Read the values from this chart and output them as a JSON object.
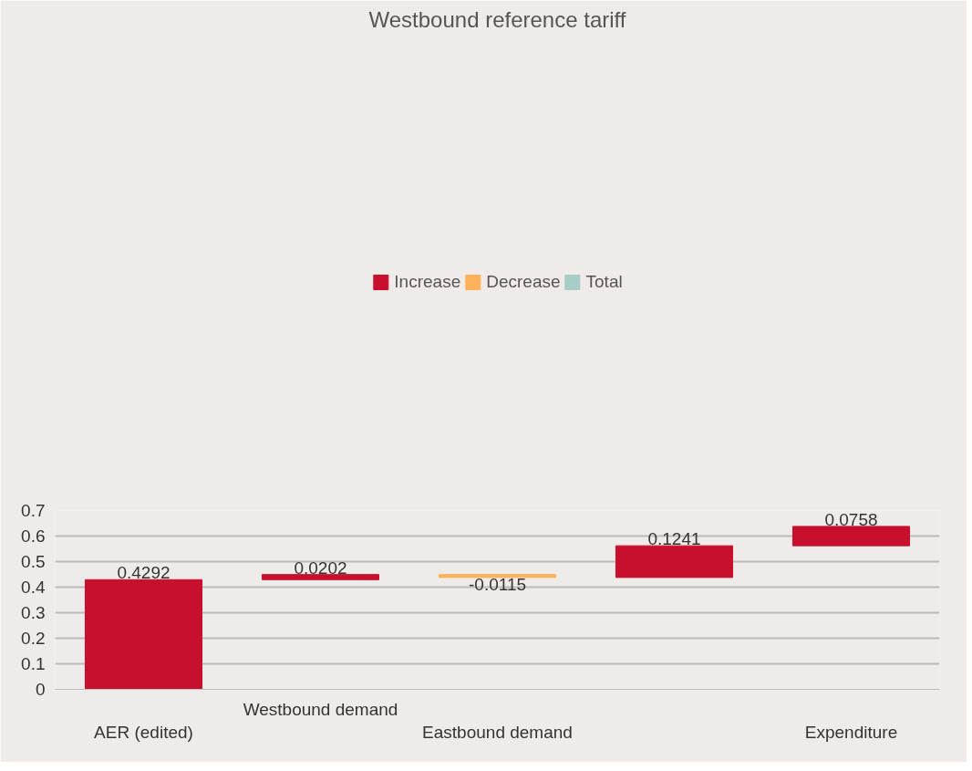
{
  "chart_data": {
    "type": "bar",
    "title": "Westbound reference tariff",
    "categories": [
      "AER (edited)",
      "Westbound demand",
      "Eastbound demand",
      null,
      "Expenditure"
    ],
    "series": [
      {
        "name": "Increase",
        "color": "#c8102e",
        "values": [
          0.4292,
          0.0202,
          null,
          0.1241,
          0.0758
        ],
        "base": [
          0,
          0.4292,
          null,
          0.4379,
          0.562
        ]
      },
      {
        "name": "Decrease",
        "color": "#ffb15c",
        "values": [
          null,
          null,
          -0.0115,
          null,
          null
        ],
        "base": [
          null,
          null,
          0.4494,
          null,
          null
        ]
      },
      {
        "name": "Total",
        "color": "#a6cdc6",
        "values": [
          null,
          null,
          null,
          null,
          null
        ]
      }
    ],
    "ylim": [
      0,
      0.7
    ],
    "yticks": [
      0,
      0.1,
      0.2,
      0.3,
      0.4,
      0.5,
      0.6,
      0.7
    ],
    "grid": "y",
    "legend": "top",
    "data_labels": true
  }
}
